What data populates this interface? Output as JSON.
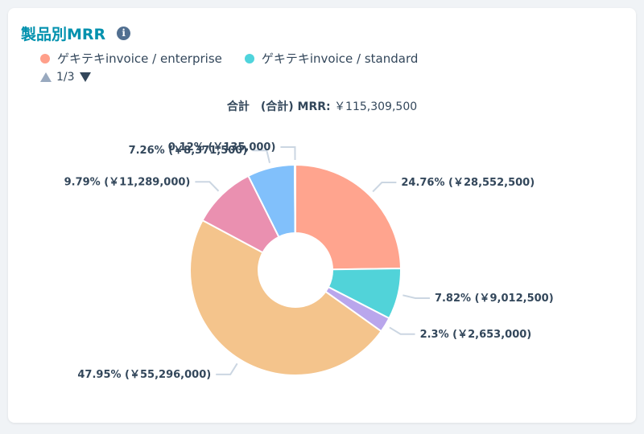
{
  "header": {
    "title": "製品別MRR",
    "info_icon": "info-icon"
  },
  "legend": [
    {
      "label": "ゲキテキinvoice / enterprise",
      "color": "#ff9f8a"
    },
    {
      "label": "ゲキテキinvoice / standard",
      "color": "#4fd4dc"
    }
  ],
  "pager": {
    "text": "1/3"
  },
  "total": {
    "label": "合計　(合計) MRR:",
    "value": "￥115,309,500"
  },
  "chart_data": {
    "type": "pie",
    "donut": true,
    "slices": [
      {
        "percent": 24.76,
        "value": 28552500,
        "label": "24.76% (￥28,552,500)",
        "color": "#ffa48e"
      },
      {
        "percent": 7.82,
        "value": 9012500,
        "label": "7.82% (￥9,012,500)",
        "color": "#51d3d9"
      },
      {
        "percent": 2.3,
        "value": 2653000,
        "label": "2.3% (￥2,653,000)",
        "color": "#b9a6ec"
      },
      {
        "percent": 47.95,
        "value": 55296000,
        "label": "47.95% (￥55,296,000)",
        "color": "#f4c48c"
      },
      {
        "percent": 9.79,
        "value": 11289000,
        "label": "9.79% (￥11,289,000)",
        "color": "#ea90b0"
      },
      {
        "percent": 7.26,
        "value": 8371500,
        "label": "7.26% (￥8,371,500)",
        "color": "#81c0fb"
      },
      {
        "percent": 0.12,
        "value": 135000,
        "label": "0.12% (￥135,000)",
        "color": "#ffd97a"
      }
    ]
  }
}
